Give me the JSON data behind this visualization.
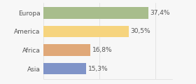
{
  "categories": [
    "Europa",
    "America",
    "Africa",
    "Asia"
  ],
  "values": [
    37.4,
    30.5,
    16.8,
    15.3
  ],
  "labels": [
    "37,4%",
    "30,5%",
    "16,8%",
    "15,3%"
  ],
  "colors": [
    "#a8bd8c",
    "#f6d47e",
    "#e0a878",
    "#8094c8"
  ],
  "background_color": "#f7f7f7",
  "bar_height": 0.62,
  "xlim": [
    0,
    46
  ],
  "label_fontsize": 6.5,
  "tick_fontsize": 6.5,
  "figsize": [
    2.8,
    1.2
  ],
  "dpi": 100
}
